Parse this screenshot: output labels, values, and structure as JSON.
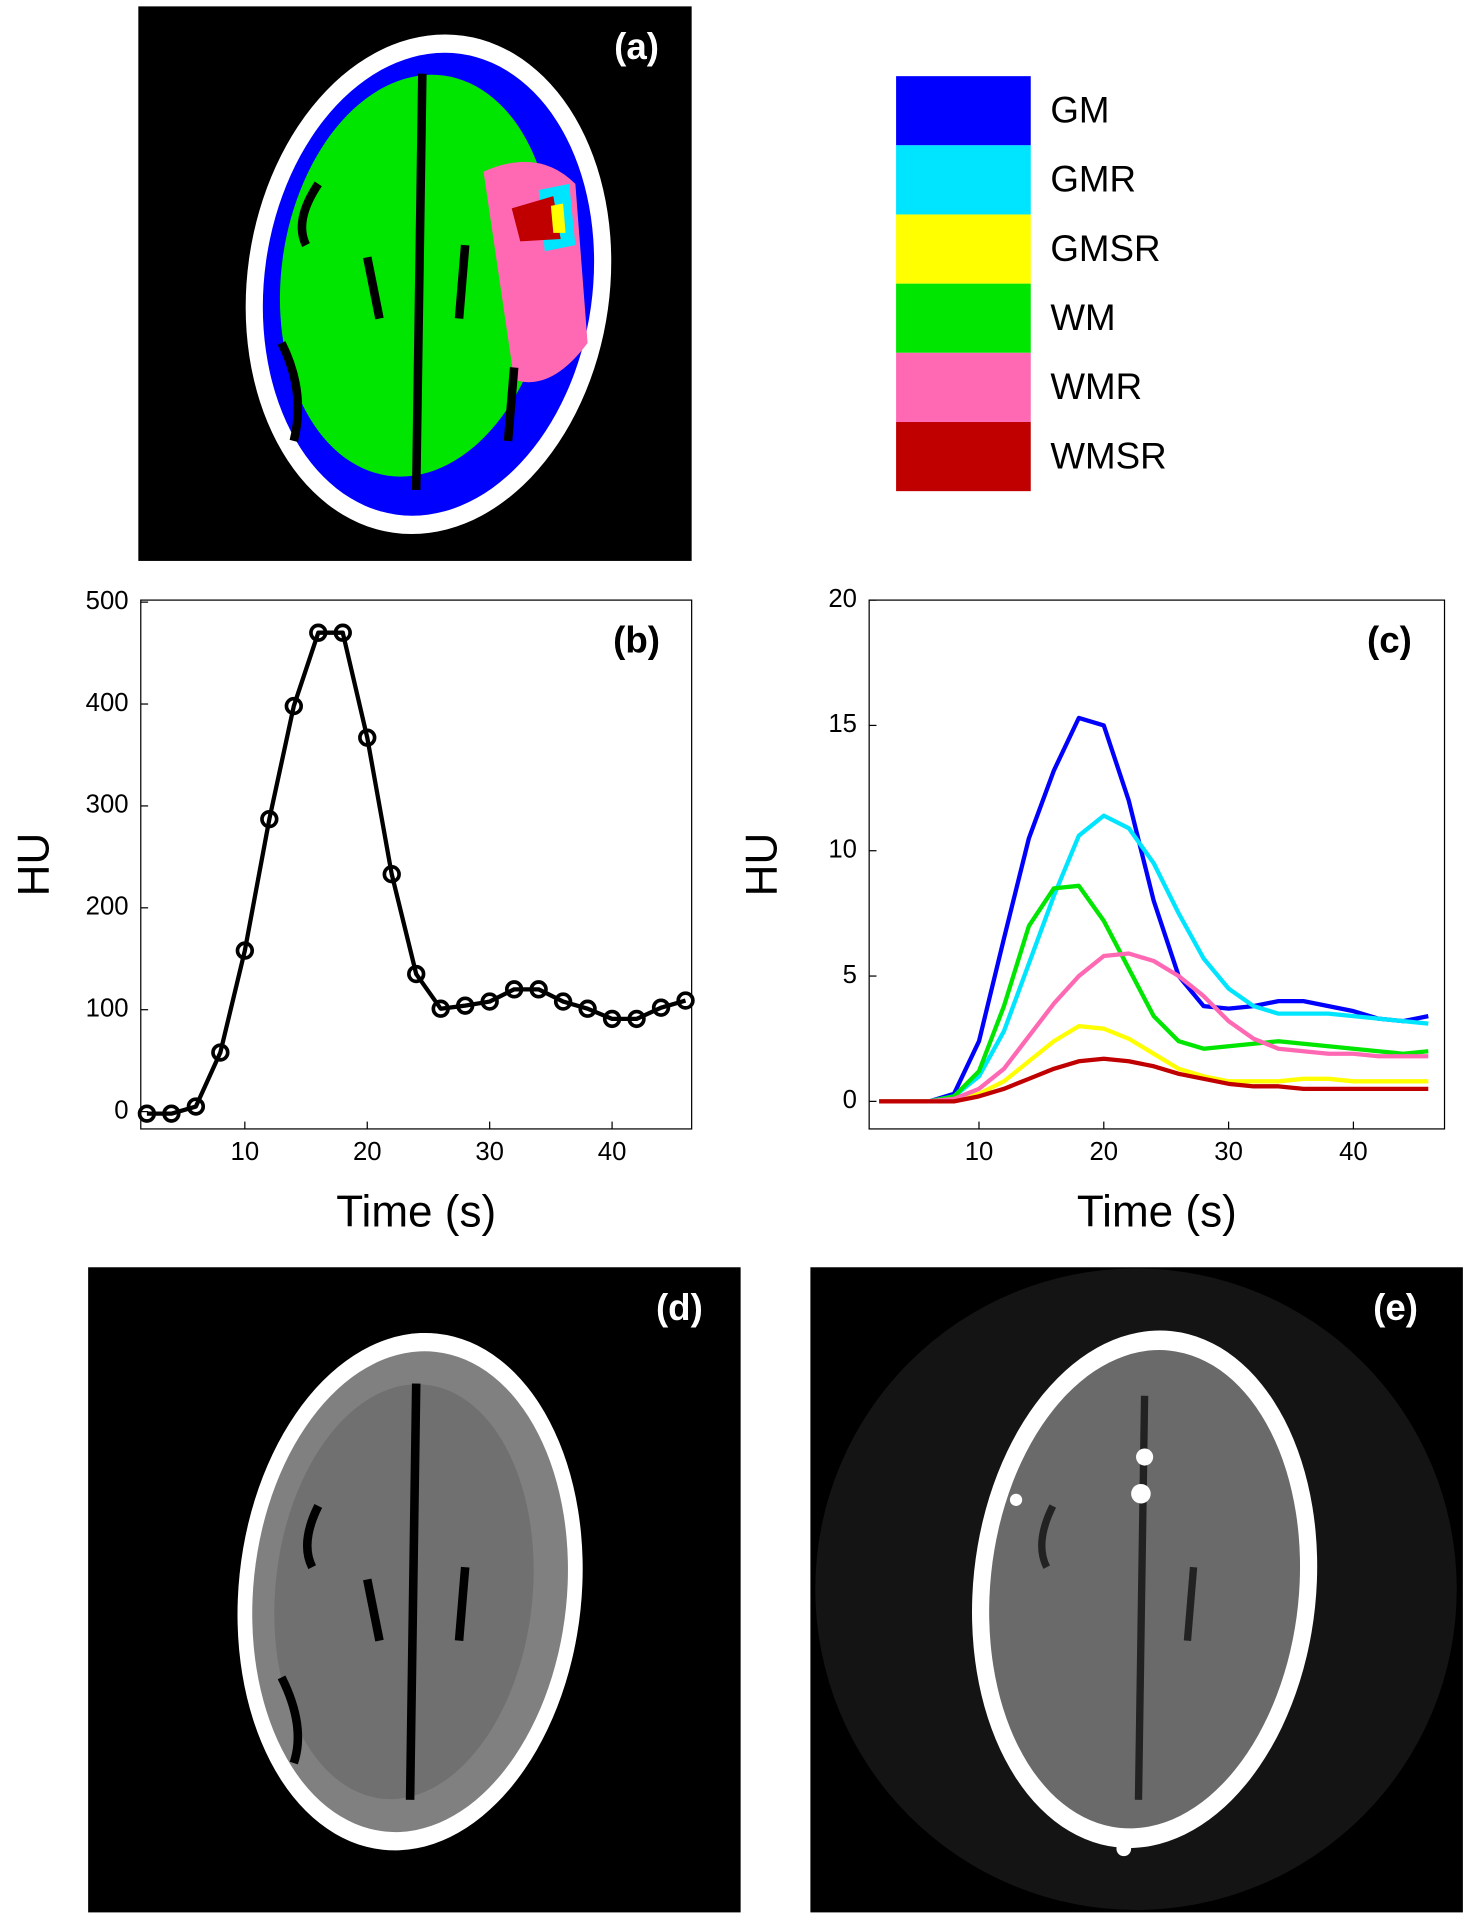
{
  "panel_labels": {
    "a": "(a)",
    "d": "(d)",
    "e": "(e)"
  },
  "chart_data": [
    {
      "type": "line",
      "panel_label": "(b)",
      "xlabel": "Time (s)",
      "ylabel": "HU",
      "marker": "circle",
      "color": "#000000",
      "x": [
        2,
        4,
        6,
        8,
        10,
        12,
        14,
        16,
        18,
        20,
        22,
        24,
        26,
        28,
        30,
        32,
        34,
        36,
        38,
        40,
        42,
        44,
        46
      ],
      "values": [
        -2,
        -2,
        5,
        58,
        158,
        287,
        398,
        470,
        470,
        367,
        233,
        135,
        101,
        104,
        108,
        120,
        120,
        108,
        101,
        91,
        91,
        102,
        109
      ],
      "xlim": [
        1.5,
        46.5
      ],
      "ylim": [
        -17,
        502
      ],
      "xticks": [
        10,
        20,
        30,
        40
      ],
      "yticks": [
        0,
        100,
        200,
        300,
        400,
        500
      ]
    },
    {
      "type": "line",
      "panel_label": "(c)",
      "xlabel": "Time (s)",
      "ylabel": "HU",
      "x": [
        2,
        4,
        6,
        8,
        10,
        12,
        14,
        16,
        18,
        20,
        22,
        24,
        26,
        28,
        30,
        32,
        34,
        36,
        38,
        40,
        42,
        44,
        46
      ],
      "series": [
        {
          "name": "GM",
          "color": "#0000ff",
          "values": [
            0,
            0,
            0,
            0.3,
            2.4,
            6.5,
            10.5,
            13.2,
            15.3,
            15.0,
            12,
            8,
            5,
            3.8,
            3.7,
            3.8,
            4,
            4,
            3.8,
            3.6,
            3.3,
            3.2,
            3.4
          ]
        },
        {
          "name": "GMR",
          "color": "#00e5ff",
          "values": [
            0,
            0,
            0,
            0.2,
            1.0,
            2.8,
            5.5,
            8.2,
            10.6,
            11.4,
            10.9,
            9.5,
            7.5,
            5.7,
            4.5,
            3.8,
            3.5,
            3.5,
            3.5,
            3.4,
            3.3,
            3.2,
            3.1
          ]
        },
        {
          "name": "GMSR",
          "color": "#ffff00",
          "values": [
            0,
            0,
            0,
            0.1,
            0.3,
            0.8,
            1.6,
            2.4,
            3.0,
            2.9,
            2.5,
            1.9,
            1.3,
            1.0,
            0.8,
            0.8,
            0.8,
            0.9,
            0.9,
            0.8,
            0.8,
            0.8,
            0.8
          ]
        },
        {
          "name": "WM",
          "color": "#00e600",
          "values": [
            0,
            0,
            0,
            0.2,
            1.2,
            3.8,
            7.0,
            8.5,
            8.6,
            7.2,
            5.3,
            3.4,
            2.4,
            2.1,
            2.2,
            2.3,
            2.4,
            2.3,
            2.2,
            2.1,
            2.0,
            1.9,
            2.0
          ]
        },
        {
          "name": "WMR",
          "color": "#ff69b4",
          "values": [
            0,
            0,
            0,
            0.1,
            0.5,
            1.3,
            2.6,
            3.9,
            5.0,
            5.8,
            5.9,
            5.6,
            5.0,
            4.2,
            3.2,
            2.5,
            2.1,
            2.0,
            1.9,
            1.9,
            1.8,
            1.8,
            1.8
          ]
        },
        {
          "name": "WMSR",
          "color": "#c00000",
          "values": [
            0,
            0,
            0,
            0,
            0.2,
            0.5,
            0.9,
            1.3,
            1.6,
            1.7,
            1.6,
            1.4,
            1.1,
            0.9,
            0.7,
            0.6,
            0.6,
            0.5,
            0.5,
            0.5,
            0.5,
            0.5,
            0.5
          ]
        }
      ],
      "xlim": [
        1.2,
        47.3
      ],
      "ylim": [
        -1.1,
        20
      ],
      "xticks": [
        10,
        20,
        30,
        40
      ],
      "yticks": [
        0,
        5,
        10,
        15,
        20
      ]
    }
  ]
}
